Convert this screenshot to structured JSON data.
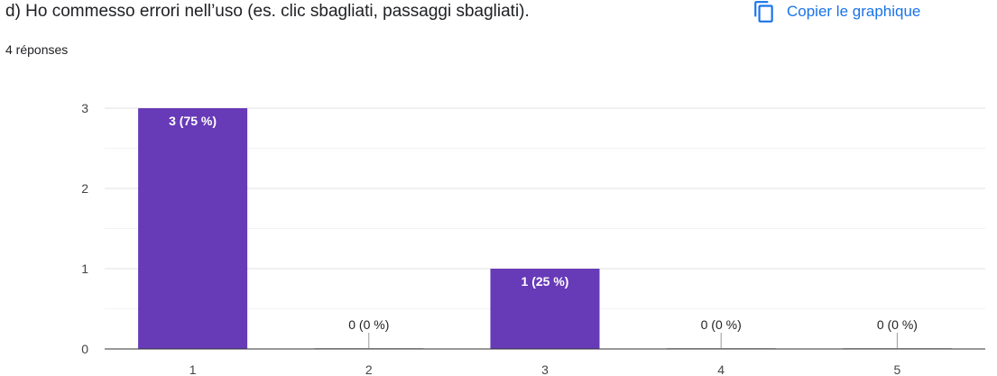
{
  "question": {
    "title": "d) Ho commesso errori nell’uso (es. clic sbagliati, passaggi sbagliati).",
    "responses": "4 réponses"
  },
  "copy_button": {
    "label": "Copier le graphique",
    "icon": "copy-icon",
    "color": "#1a73e8"
  },
  "chart_data": {
    "type": "bar",
    "categories": [
      "1",
      "2",
      "3",
      "4",
      "5"
    ],
    "values": [
      3,
      0,
      1,
      0,
      0
    ],
    "data_labels": [
      "3 (75 %)",
      "0 (0 %)",
      "1 (25 %)",
      "0 (0 %)",
      "0 (0 %)"
    ],
    "ylim": [
      0,
      3
    ],
    "yticks": [
      0,
      1,
      2,
      3
    ],
    "grid": true,
    "bar_color": "#673ab7",
    "title": "",
    "xlabel": "",
    "ylabel": ""
  }
}
